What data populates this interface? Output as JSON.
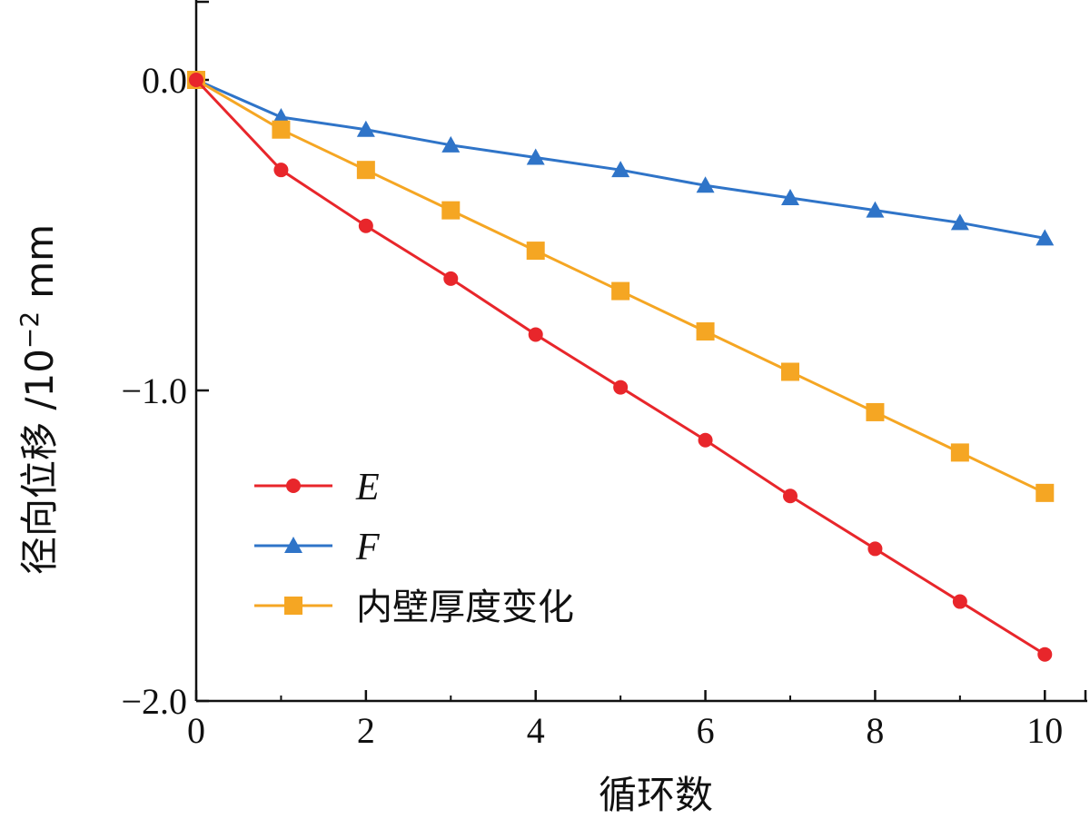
{
  "chart_data": {
    "type": "line",
    "xlabel": "循环数",
    "ylabel_main": "径向位移 /10",
    "ylabel_exp": "−2",
    "ylabel_unit": "mm",
    "xlim": [
      0,
      10.5
    ],
    "ylim": [
      -2.0,
      0.25
    ],
    "x_ticks": [
      0,
      2,
      4,
      6,
      8,
      10
    ],
    "x_tick_labels": [
      "0",
      "2",
      "4",
      "6",
      "8",
      "10"
    ],
    "y_ticks": [
      0.0,
      -1.0,
      -2.0
    ],
    "y_tick_labels": [
      "0.0",
      "−1.0",
      "−2.0"
    ],
    "grid": false,
    "legend_position": "lower-left",
    "x": [
      0,
      1,
      2,
      3,
      4,
      5,
      6,
      7,
      8,
      9,
      10
    ],
    "series": [
      {
        "name": "E",
        "color": "#e8262b",
        "marker": "circle",
        "values": [
          0.0,
          -0.29,
          -0.47,
          -0.64,
          -0.82,
          -0.99,
          -1.16,
          -1.34,
          -1.51,
          -1.68,
          -1.85
        ]
      },
      {
        "name": "F",
        "color": "#2f74c8",
        "marker": "triangle",
        "values": [
          0.0,
          -0.12,
          -0.16,
          -0.21,
          -0.25,
          -0.29,
          -0.34,
          -0.38,
          -0.42,
          -0.46,
          -0.51
        ]
      },
      {
        "name": "内壁厚度变化",
        "color": "#f5a623",
        "marker": "square",
        "values": [
          0.0,
          -0.16,
          -0.29,
          -0.42,
          -0.55,
          -0.68,
          -0.81,
          -0.94,
          -1.07,
          -1.2,
          -1.33
        ]
      }
    ]
  }
}
